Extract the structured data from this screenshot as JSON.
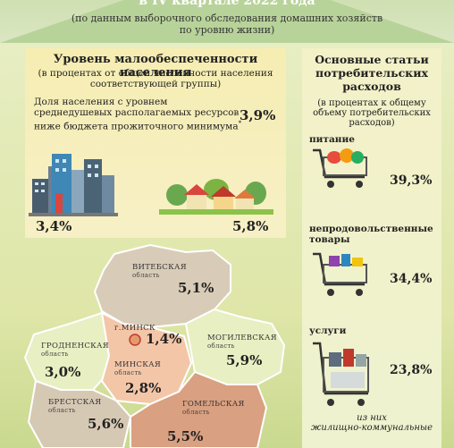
{
  "header": {
    "title": "в IV квартале 2022 года",
    "subtitle_line1": "(по данным выборочного обследования домашних хозяйств",
    "subtitle_line2": "по уровню жизни)"
  },
  "poverty": {
    "title": "Уровень малообеспеченности населения",
    "subtitle_line1": "(в процентах от общей численности населения",
    "subtitle_line2": "соответствующей группы)",
    "share_label_line1": "Доля населения с уровнем",
    "share_label_line2": "среднедушевых располагаемых ресурсов",
    "share_label_line3": "ниже бюджета прожиточного минимума",
    "share_value": "3,9%",
    "urban_value": "3,4%",
    "rural_value": "5,8%"
  },
  "regions": [
    {
      "name": "ВИТЕБСКАЯ",
      "sub": "область",
      "value": "5,1%"
    },
    {
      "name": "г.МИНСК",
      "sub": "",
      "value": "1,4%"
    },
    {
      "name": "МОГИЛЕВСКАЯ",
      "sub": "область",
      "value": "5,9%"
    },
    {
      "name": "ГРОДНЕНСКАЯ",
      "sub": "область",
      "value": "3,0%"
    },
    {
      "name": "МИНСКАЯ",
      "sub": "область",
      "value": "2,8%"
    },
    {
      "name": "БРЕСТСКАЯ",
      "sub": "область",
      "value": "5,6%"
    },
    {
      "name": "ГОМЕЛЬСКАЯ",
      "sub": "область",
      "value": "5,5%"
    }
  ],
  "expenses": {
    "title_line1": "Основные статьи",
    "title_line2": "потребительских",
    "title_line3": "расходов",
    "subtitle_line1": "(в процентах к общему",
    "subtitle_line2": "объему потребительских",
    "subtitle_line3": "расходов)",
    "categories": [
      {
        "label_line1": "питание",
        "label_line2": "",
        "value": "39,3%"
      },
      {
        "label_line1": "непродовольственные",
        "label_line2": "товары",
        "value": "34,4%"
      },
      {
        "label_line1": "услуги",
        "label_line2": "",
        "value": "23,8%"
      }
    ],
    "note_line1": "из них",
    "note_line2": "жилищно-коммунальные"
  },
  "colors": {
    "vitebsk": "#d8ccb8",
    "minsk_city": "#e39a6e",
    "mogilev": "#e8efc2",
    "grodno": "#e8efc2",
    "minsk_region": "#f3c6a8",
    "brest": "#d6c9b4",
    "gomel": "#d9a081"
  }
}
